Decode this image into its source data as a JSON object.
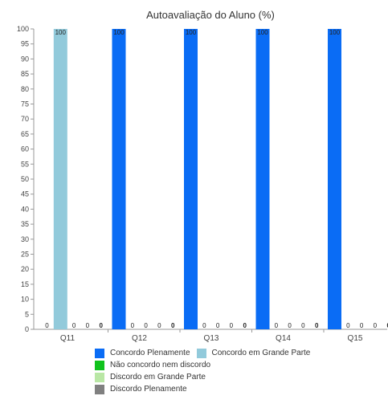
{
  "chart_data": {
    "type": "bar",
    "title": "Autoavaliação do Aluno (%)",
    "categories": [
      "Q11",
      "Q12",
      "Q13",
      "Q14",
      "Q15"
    ],
    "ylim": [
      0,
      100
    ],
    "yticks": [
      0,
      5,
      10,
      15,
      20,
      25,
      30,
      35,
      40,
      45,
      50,
      55,
      60,
      65,
      70,
      75,
      80,
      85,
      90,
      95,
      100
    ],
    "grid": false,
    "legend_position": "bottom",
    "series": [
      {
        "name": "Concordo Plenamente",
        "color": "#0a6cf5",
        "values": [
          0,
          100,
          100,
          100,
          100
        ]
      },
      {
        "name": "Concordo em Grande Parte",
        "color": "#92cadb",
        "values": [
          100,
          0,
          0,
          0,
          0
        ]
      },
      {
        "name": "Não concordo nem discordo",
        "color": "#10c21c",
        "values": [
          0,
          0,
          0,
          0,
          0
        ]
      },
      {
        "name": "Discordo em Grande Parte",
        "color": "#b9e7a5",
        "values": [
          0,
          0,
          0,
          0,
          0
        ]
      },
      {
        "name": "Discordo Plenamente",
        "color": "#808080",
        "values": [
          0,
          0,
          0,
          0,
          0
        ]
      }
    ],
    "data_labels": true
  }
}
